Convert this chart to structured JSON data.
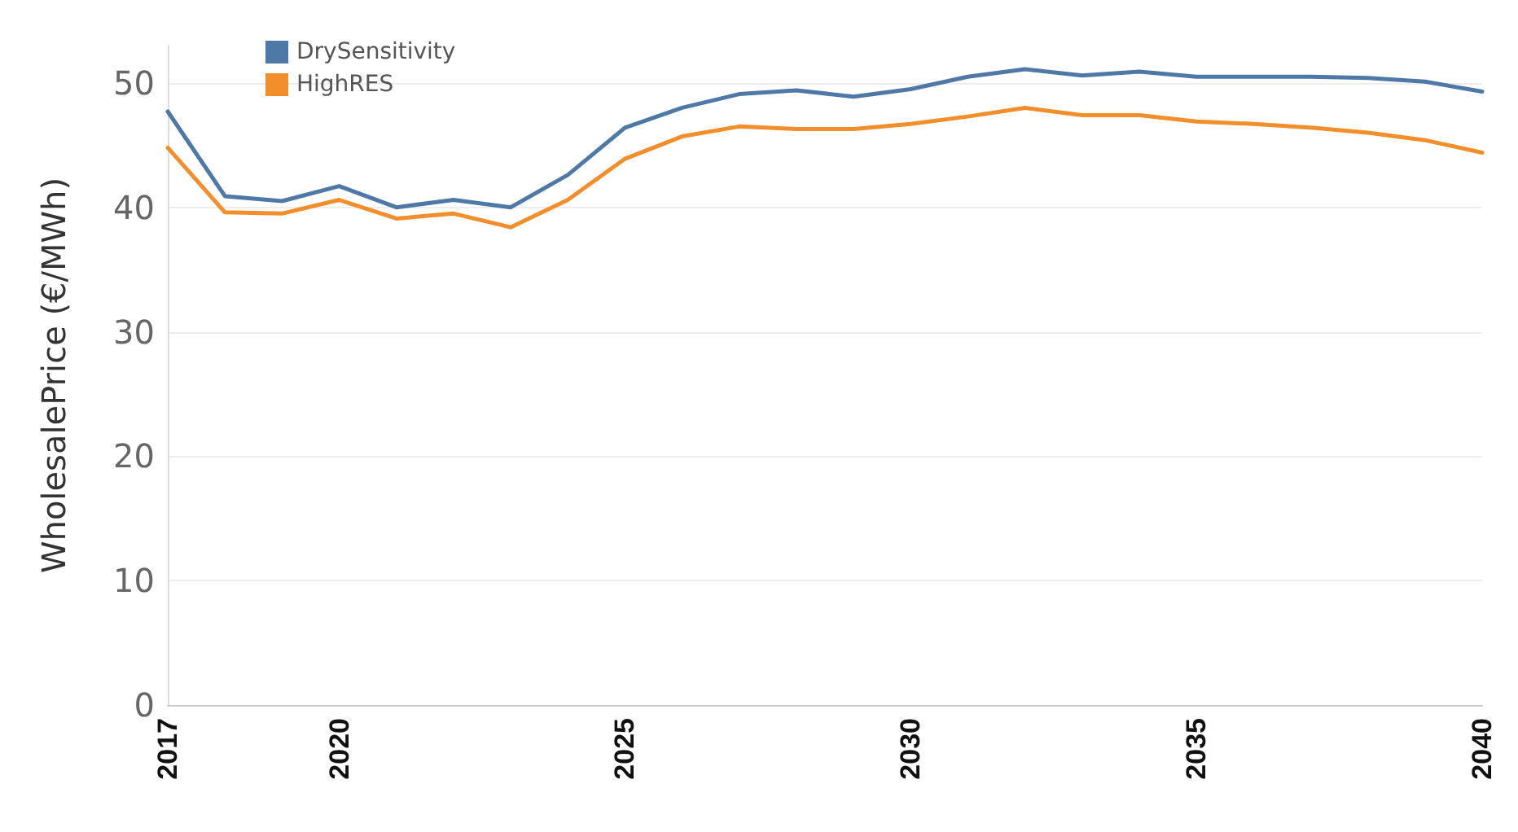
{
  "chart_data": {
    "type": "line",
    "ylabel": "WholesalePrice (€/MWh)",
    "x": [
      2017,
      2018,
      2019,
      2020,
      2021,
      2022,
      2023,
      2024,
      2025,
      2026,
      2027,
      2028,
      2029,
      2030,
      2031,
      2032,
      2033,
      2034,
      2035,
      2036,
      2037,
      2038,
      2039,
      2040
    ],
    "xlim": [
      2017,
      2040
    ],
    "xticks": [
      2017,
      2020,
      2025,
      2030,
      2035,
      2040
    ],
    "ylim": [
      0,
      53
    ],
    "yticks": [
      0,
      10,
      20,
      30,
      40,
      50
    ],
    "series": [
      {
        "name": "DrySensitivity",
        "color": "#4e79a7",
        "values": [
          47.7,
          40.9,
          40.5,
          41.7,
          40.0,
          40.6,
          40.0,
          42.6,
          46.4,
          48.0,
          49.1,
          49.4,
          48.9,
          49.5,
          50.5,
          51.1,
          50.6,
          50.9,
          50.5,
          50.5,
          50.5,
          50.4,
          50.1,
          49.3
        ]
      },
      {
        "name": "HighRES",
        "color": "#f28e2b",
        "values": [
          44.8,
          39.6,
          39.5,
          40.6,
          39.1,
          39.5,
          38.4,
          40.6,
          43.9,
          45.7,
          46.5,
          46.3,
          46.3,
          46.7,
          47.3,
          48.0,
          47.4,
          47.4,
          46.9,
          46.7,
          46.4,
          46.0,
          45.4,
          44.4
        ]
      }
    ],
    "grid": "y",
    "legend": "top left",
    "marker": "none",
    "line_style": "solid"
  }
}
